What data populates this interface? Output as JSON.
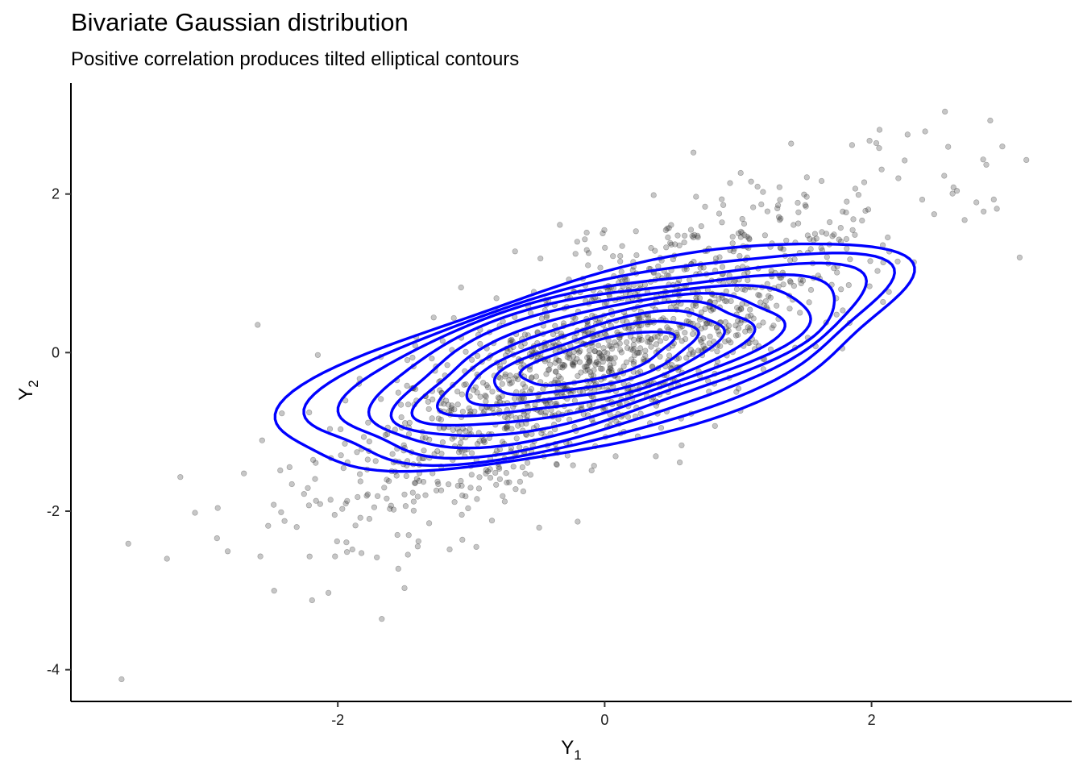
{
  "chart_data": {
    "type": "scatter",
    "title": "Bivariate Gaussian distribution",
    "subtitle": "Positive correlation produces tilted elliptical contours",
    "xlabel": {
      "main": "Y",
      "sub": "1"
    },
    "ylabel": {
      "main": "Y",
      "sub": "2"
    },
    "xlim": [
      -4.0,
      3.5
    ],
    "ylim": [
      -4.4,
      3.4
    ],
    "xticks": [
      -2,
      0,
      2
    ],
    "yticks": [
      -4,
      -2,
      0,
      2
    ],
    "xtick_labels": [
      "-2",
      "0",
      "2"
    ],
    "ytick_labels": [
      "-4",
      "-2",
      "0",
      "2"
    ],
    "grid": false,
    "legend": "none",
    "point_color": "#333333",
    "contour_color": "#0000ff",
    "points": {
      "count": 1500,
      "mean": [
        0,
        0
      ],
      "sd": [
        1,
        1
      ],
      "correlation": 0.8,
      "outliers": [
        [
          -3.62,
          -4.12
        ],
        [
          -3.57,
          -2.41
        ],
        [
          -3.28,
          -2.6
        ],
        [
          -3.18,
          -1.57
        ],
        [
          -3.07,
          -2.02
        ],
        [
          -2.9,
          -1.96
        ],
        [
          -2.6,
          0.35
        ],
        [
          -2.15,
          -0.03
        ],
        [
          -1.67,
          -3.36
        ],
        [
          -1.5,
          -2.97
        ],
        [
          -2.07,
          -3.03
        ],
        [
          2.55,
          3.04
        ],
        [
          3.16,
          2.43
        ],
        [
          2.98,
          2.6
        ],
        [
          2.06,
          2.81
        ],
        [
          3.11,
          1.2
        ],
        [
          2.84,
          1.78
        ],
        [
          2.86,
          2.37
        ],
        [
          2.27,
          2.75
        ],
        [
          2.38,
          1.93
        ]
      ]
    },
    "contour_levels": {
      "count": 10,
      "center": [
        -0.05,
        -0.08
      ],
      "angle_deg": 26,
      "outer_semi_axes": [
        2.55,
        1.0
      ],
      "inner_semi_axes": [
        0.62,
        0.22
      ]
    }
  }
}
